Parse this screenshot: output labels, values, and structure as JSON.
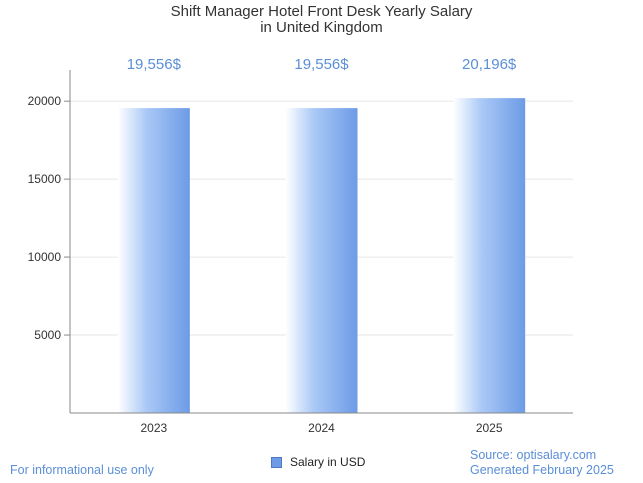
{
  "title": [
    "Shift Manager Hotel Front Desk Yearly Salary",
    "in United Kingdom"
  ],
  "footer": {
    "left": "For informational use only",
    "source": "Source: optisalary.com",
    "generated": "Generated February 2025"
  },
  "colors": {
    "bar_light": "#ffffff",
    "bar_mid": "#a9c8f6",
    "bar_dark": "#6d9be6",
    "value_label": "#5b8fd6",
    "grid": "#e6e6e6",
    "axis": "#888888"
  },
  "chart_data": {
    "type": "bar",
    "title": "Shift Manager Hotel Front Desk Yearly Salary in United Kingdom",
    "categories": [
      "2023",
      "2024",
      "2025"
    ],
    "series": [
      {
        "name": "Salary in USD",
        "values": [
          19556,
          19556,
          20196
        ]
      }
    ],
    "data_labels": [
      "19,556$",
      "19,556$",
      "20,196$"
    ],
    "yticks": [
      5000,
      10000,
      15000,
      20000
    ],
    "ylim": [
      0,
      22000
    ],
    "xlabel": "",
    "ylabel": "",
    "grid": true,
    "legend": "bottom-center"
  }
}
